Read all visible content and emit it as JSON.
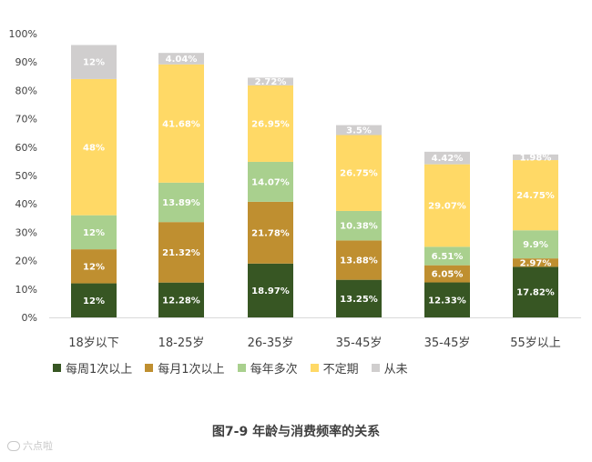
{
  "chart_data": {
    "type": "bar",
    "stacked": true,
    "normalized": true,
    "categories": [
      "18岁以下",
      "18-25岁",
      "26-35岁",
      "35-45岁",
      "35-45岁",
      "55岁以上"
    ],
    "series": [
      {
        "name": "每周1次以上",
        "color": "#375623",
        "values": [
          12,
          12.28,
          18.97,
          13.25,
          12.33,
          17.82
        ],
        "labels": [
          "12%",
          "12.28%",
          "18.97%",
          "13.25%",
          "12.33%",
          "17.82%"
        ]
      },
      {
        "name": "每月1次以上",
        "color": "#bf8f30",
        "values": [
          12,
          21.32,
          21.78,
          13.88,
          6.05,
          2.97
        ],
        "labels": [
          "12%",
          "21.32%",
          "21.78%",
          "13.88%",
          "6.05%",
          "2.97%"
        ]
      },
      {
        "name": "每年多次",
        "color": "#a9d08e",
        "values": [
          12,
          13.89,
          14.07,
          10.38,
          6.51,
          9.9
        ],
        "labels": [
          "12%",
          "13.89%",
          "14.07%",
          "10.38%",
          "6.51%",
          "9.9%"
        ]
      },
      {
        "name": "不定期",
        "color": "#ffd966",
        "values": [
          48,
          41.68,
          26.95,
          26.75,
          29.07,
          24.75
        ],
        "labels": [
          "48%",
          "41.68%",
          "26.95%",
          "26.75%",
          "29.07%",
          "24.75%"
        ]
      },
      {
        "name": "从未",
        "color": "#d0cece",
        "values": [
          12,
          4.04,
          2.72,
          3.5,
          4.42,
          1.98
        ],
        "labels": [
          "12%",
          "4.04%",
          "2.72%",
          "3.5%",
          "4.42%",
          "1.98%"
        ]
      }
    ],
    "y_ticks": [
      "0%",
      "10%",
      "20%",
      "30%",
      "40%",
      "50%",
      "60%",
      "70%",
      "80%",
      "90%",
      "100%"
    ],
    "ylim": [
      0,
      100
    ],
    "grid": false,
    "legend_position": "bottom"
  },
  "caption": "图7-9 年龄与消费频率的关系",
  "watermark": "六点啦"
}
